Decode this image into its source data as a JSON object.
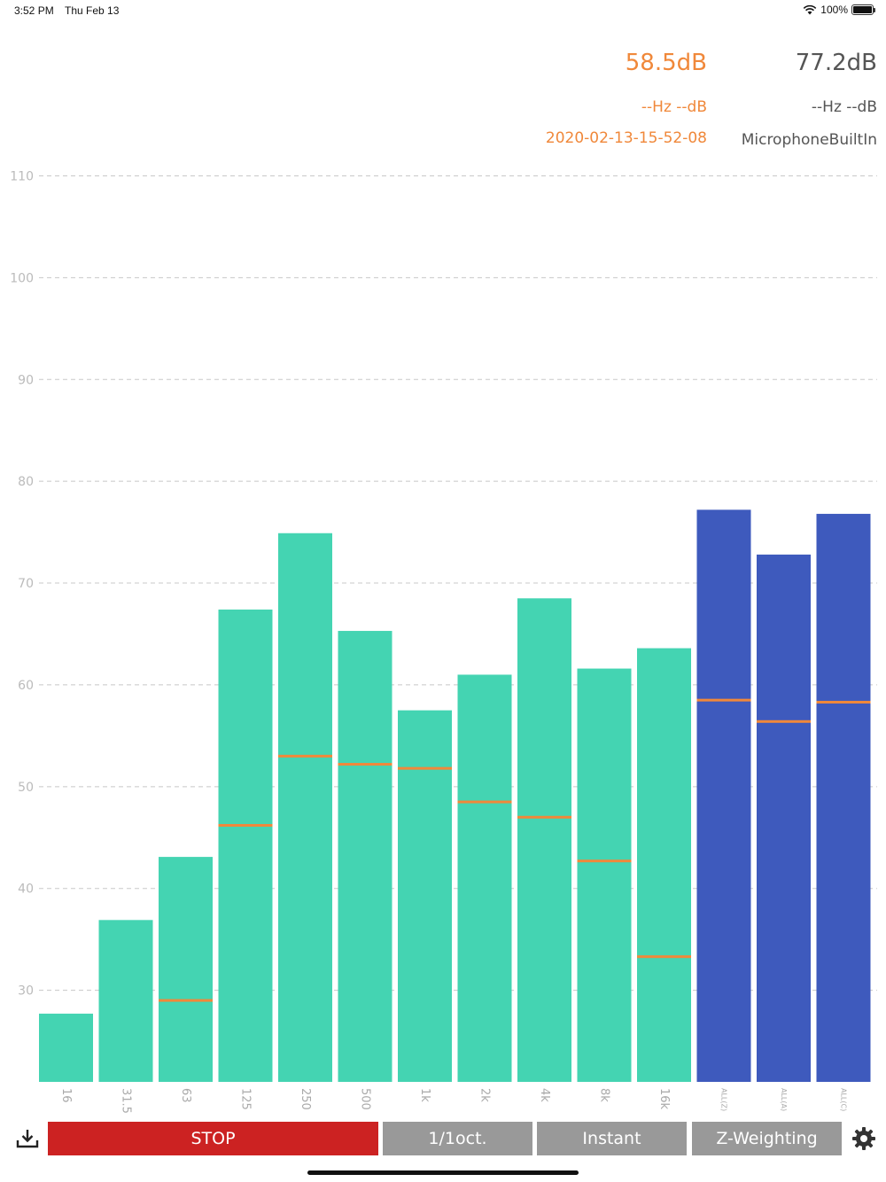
{
  "status_bar": {
    "time": "3:52 PM",
    "date": "Thu Feb 13",
    "battery": "100%"
  },
  "readout": {
    "current_level": "58.5dB",
    "max_level": "77.2dB",
    "current_peak": "--Hz --dB",
    "max_peak": "--Hz --dB",
    "timestamp": "2020-02-13-15-52-08",
    "device": "MicrophoneBuiltIn"
  },
  "colors": {
    "band_bar": "#44d4b2",
    "total_bar": "#3e5abd",
    "marker": "#f0883a",
    "grid": "#c8c8c8",
    "stop_button": "#cc2222",
    "mode_button": "#999999"
  },
  "chart_data": {
    "type": "bar",
    "y_ticks": [
      "30",
      "40",
      "50",
      "60",
      "70",
      "80",
      "90",
      "100",
      "110"
    ],
    "ylim": [
      21,
      111
    ],
    "grid": true,
    "categories": [
      "16",
      "31.5",
      "63",
      "125",
      "250",
      "500",
      "1k",
      "2k",
      "4k",
      "8k",
      "16k",
      "ALL(Z)",
      "ALL(A)",
      "ALL(C)"
    ],
    "series": [
      {
        "values": [
          27.7,
          36.9,
          43.1,
          67.4,
          74.9,
          65.3,
          57.5,
          61.0,
          68.5,
          61.6,
          63.6,
          77.2,
          72.8,
          76.8
        ]
      },
      {
        "values": [
          null,
          null,
          29.0,
          46.2,
          53.0,
          52.2,
          51.8,
          48.5,
          47.0,
          42.7,
          33.3,
          58.5,
          56.4,
          58.3
        ]
      }
    ]
  },
  "toolbar": {
    "stop_label": "STOP",
    "band_label": "1/1oct.",
    "mode_label": "Instant",
    "weighting_label": "Z-Weighting"
  }
}
